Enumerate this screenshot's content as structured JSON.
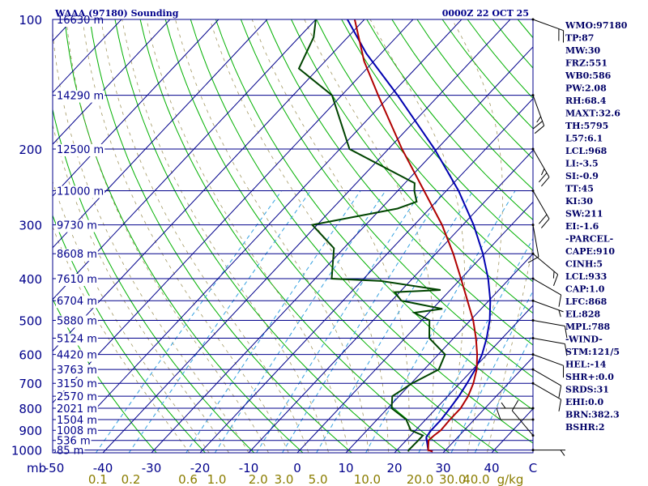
{
  "title_left": "WAAA (97180) Sounding",
  "title_right": "0000Z 22 OCT 25",
  "chart_data": {
    "type": "skew-t",
    "pressure_ticks": [
      100,
      200,
      300,
      400,
      500,
      600,
      700,
      800,
      900,
      1000
    ],
    "pressure_unit": "mb",
    "temp_ticks": [
      -50,
      -40,
      -30,
      -20,
      -10,
      0,
      10,
      20,
      30,
      40
    ],
    "temp_unit": "C",
    "mixing_ratio_ticks": [
      "0.1",
      "0.2",
      "0.6",
      "1.0",
      "2.0",
      "3.0",
      "5.0",
      "10.0",
      "20.0",
      "30.0",
      "40.0"
    ],
    "mixing_ratio_unit": "g/kg",
    "heights": [
      {
        "p": 100,
        "label": "16630 m"
      },
      {
        "p": 150,
        "label": "14290 m"
      },
      {
        "p": 200,
        "label": "12500 m"
      },
      {
        "p": 250,
        "label": "11000 m"
      },
      {
        "p": 300,
        "label": "9730 m"
      },
      {
        "p": 350,
        "label": "8608 m"
      },
      {
        "p": 400,
        "label": "7610 m"
      },
      {
        "p": 450,
        "label": "6704 m"
      },
      {
        "p": 500,
        "label": "5880 m"
      },
      {
        "p": 550,
        "label": "5124 m"
      },
      {
        "p": 600,
        "label": "4420 m"
      },
      {
        "p": 650,
        "label": "3763 m"
      },
      {
        "p": 700,
        "label": "3150 m"
      },
      {
        "p": 750,
        "label": "2570 m"
      },
      {
        "p": 800,
        "label": "2021 m"
      },
      {
        "p": 850,
        "label": "1504 m"
      },
      {
        "p": 900,
        "label": "1008 m"
      },
      {
        "p": 950,
        "label": "536 m"
      },
      {
        "p": 1000,
        "label": "85 m"
      }
    ],
    "temperature": [
      [
        1008,
        27.6
      ],
      [
        1000,
        26.4
      ],
      [
        950,
        24.6
      ],
      [
        925,
        24.8
      ],
      [
        900,
        25.2
      ],
      [
        850,
        25.0
      ],
      [
        800,
        25.0
      ],
      [
        750,
        24.2
      ],
      [
        700,
        22.8
      ],
      [
        650,
        20.8
      ],
      [
        600,
        18.0
      ],
      [
        550,
        14.6
      ],
      [
        500,
        10.6
      ],
      [
        450,
        5.6
      ],
      [
        400,
        0.0
      ],
      [
        350,
        -6.4
      ],
      [
        300,
        -14.3
      ],
      [
        250,
        -24.6
      ],
      [
        200,
        -37.2
      ],
      [
        150,
        -52.5
      ],
      [
        125,
        -62.0
      ],
      [
        100,
        -72.0
      ],
      [
        85,
        -73.5
      ]
    ],
    "dewpoint": [
      [
        1008,
        22.6
      ],
      [
        1000,
        22.4
      ],
      [
        950,
        22.5
      ],
      [
        925,
        22.5
      ],
      [
        900,
        19.0
      ],
      [
        850,
        16.0
      ],
      [
        800,
        10.8
      ],
      [
        750,
        8.6
      ],
      [
        700,
        10.2
      ],
      [
        650,
        13.0
      ],
      [
        600,
        11.4
      ],
      [
        550,
        5.0
      ],
      [
        500,
        1.6
      ],
      [
        480,
        -3.0
      ],
      [
        470,
        2.0
      ],
      [
        450,
        -8.0
      ],
      [
        430,
        -11.0
      ],
      [
        425,
        -2.0
      ],
      [
        405,
        -16.0
      ],
      [
        400,
        -26.6
      ],
      [
        340,
        -32.0
      ],
      [
        300,
        -41.0
      ],
      [
        275,
        -26.6
      ],
      [
        265,
        -24.0
      ],
      [
        250,
        -26.6
      ],
      [
        240,
        -28.0
      ],
      [
        200,
        -48.0
      ],
      [
        150,
        -62.0
      ],
      [
        130,
        -74.0
      ],
      [
        110,
        -77.0
      ],
      [
        100,
        -80.0
      ],
      [
        85,
        -80.0
      ]
    ],
    "parcel": [
      [
        1008,
        27.6
      ],
      [
        1000,
        26.4
      ],
      [
        933,
        23.5
      ],
      [
        900,
        23.2
      ],
      [
        850,
        23.2
      ],
      [
        800,
        22.8
      ],
      [
        750,
        22.3
      ],
      [
        700,
        21.5
      ],
      [
        650,
        20.5
      ],
      [
        600,
        19.0
      ],
      [
        550,
        16.8
      ],
      [
        500,
        14.0
      ],
      [
        450,
        10.3
      ],
      [
        400,
        5.6
      ],
      [
        350,
        -0.3
      ],
      [
        300,
        -7.8
      ],
      [
        250,
        -17.5
      ],
      [
        200,
        -30.5
      ],
      [
        150,
        -48.5
      ],
      [
        120,
        -63.0
      ],
      [
        100,
        -73.5
      ],
      [
        90,
        -80.0
      ]
    ],
    "wind_barbs": [
      {
        "p": 1000,
        "dir": 90,
        "spd": 5
      },
      {
        "p": 925,
        "dir": 320,
        "spd": 10
      },
      {
        "p": 850,
        "dir": 270,
        "spd": 10
      },
      {
        "p": 800,
        "dir": 270,
        "spd": 5
      },
      {
        "p": 700,
        "dir": 120,
        "spd": 10
      },
      {
        "p": 650,
        "dir": 120,
        "spd": 10
      },
      {
        "p": 600,
        "dir": 110,
        "spd": 10
      },
      {
        "p": 550,
        "dir": 100,
        "spd": 10
      },
      {
        "p": 500,
        "dir": 100,
        "spd": 10
      },
      {
        "p": 450,
        "dir": 110,
        "spd": 5
      },
      {
        "p": 400,
        "dir": 120,
        "spd": 10
      },
      {
        "p": 350,
        "dir": 130,
        "spd": 15
      },
      {
        "p": 300,
        "dir": 170,
        "spd": 10
      },
      {
        "p": 250,
        "dir": 150,
        "spd": 20
      },
      {
        "p": 200,
        "dir": 150,
        "spd": 25
      },
      {
        "p": 150,
        "dir": 160,
        "spd": 25
      },
      {
        "p": 100,
        "dir": 110,
        "spd": 20
      }
    ]
  },
  "indices": [
    "WMO:97180",
    "TP:87",
    "MW:30",
    "FRZ:551",
    "WB0:586",
    "PW:2.08",
    "RH:68.4",
    "MAXT:32.6",
    "TH:5795",
    "L57:6.1",
    "LCL:968",
    "LI:-3.5",
    "SI:-0.9",
    "TT:45",
    "KI:30",
    "SW:211",
    "EI:-1.6",
    "-PARCEL-",
    "CAPE:910",
    "CINH:5",
    "LCL:933",
    "CAP:1.0",
    "LFC:868",
    "EL:828",
    "MPL:788",
    "-WIND-",
    "STM:121/5",
    "HEL:-14",
    "SHR+:0.0",
    "SRDS:31",
    "EHI:0.0",
    "BRN:382.3",
    "BSHR:2"
  ],
  "colors": {
    "frame": "#00008b",
    "isobar": "#00008b",
    "isotherm": "#00008b",
    "dry_adiabat": "#00b000",
    "moist_adiabat": "#00b000",
    "mixing_ratio": "#33a0e0",
    "theta_e_dash": "#8b7d3a",
    "temperature": "#b00000",
    "dewpoint": "#004400",
    "parcel": "#0000b0",
    "barb": "#000000",
    "index_text": "#000066",
    "mixing_label": "#8b7d00"
  }
}
